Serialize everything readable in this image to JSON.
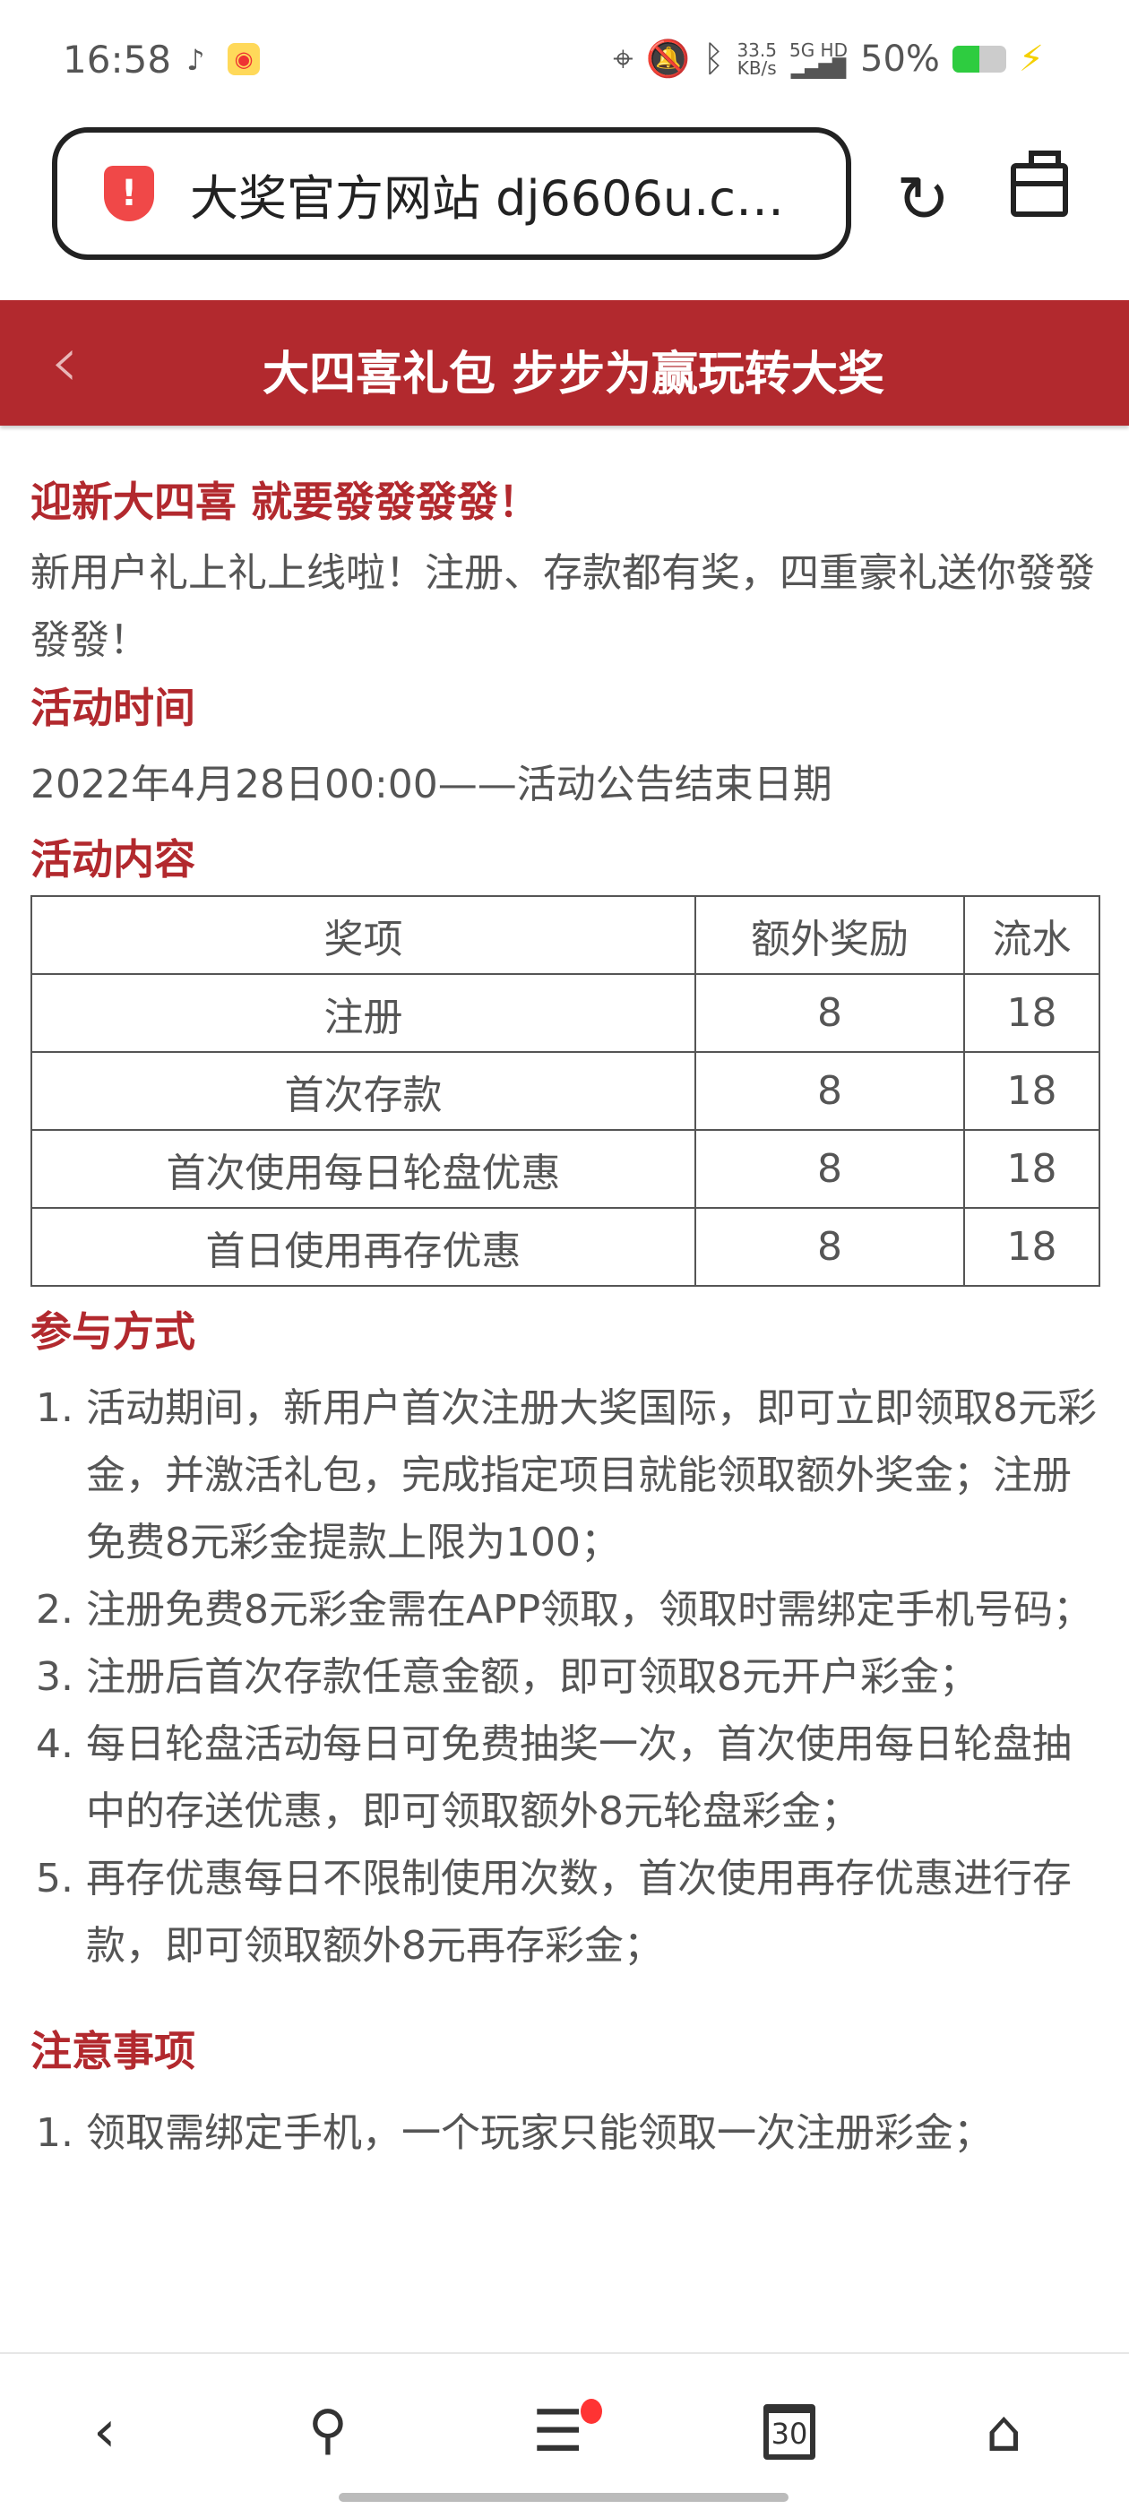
{
  "status": {
    "time": "16:58",
    "speed_top": "33.5",
    "speed_bottom": "KB/s",
    "network": "5G HD",
    "battery": "50%",
    "battery_level": 0.5
  },
  "browser": {
    "url": "大奖官方网站 dj6606u.c…",
    "security": "warning"
  },
  "header": {
    "back": "‹",
    "title": "大四喜礼包 步步为赢玩转大奖"
  },
  "intro": {
    "heading": "迎新大四喜 就要發發發發！",
    "text": "新用户礼上礼上线啦！注册、存款都有奖，四重豪礼送你發發發發！"
  },
  "time": {
    "heading": "活动时间",
    "text": "2022年4月28日00:00——活动公告结束日期"
  },
  "content": {
    "heading": "活动内容",
    "columns": [
      "奖项",
      "额外奖励",
      "流水"
    ],
    "rows": [
      [
        "注册",
        "8",
        "18"
      ],
      [
        "首次存款",
        "8",
        "18"
      ],
      [
        "首次使用每日轮盘优惠",
        "8",
        "18"
      ],
      [
        "首日使用再存优惠",
        "8",
        "18"
      ]
    ]
  },
  "participate": {
    "heading": "参与方式",
    "items": [
      "活动期间，新用户首次注册大奖国际，即可立即领取8元彩金，并激活礼包，完成指定项目就能领取额外奖金；注册免费8元彩金提款上限为100；",
      "注册免费8元彩金需在APP领取，领取时需绑定手机号码；",
      "注册后首次存款任意金额，即可领取8元开户彩金；",
      "每日轮盘活动每日可免费抽奖一次，首次使用每日轮盘抽中的存送优惠，即可领取额外8元轮盘彩金；",
      "再存优惠每日不限制使用次数，首次使用再存优惠进行存款，即可领取额外8元再存彩金；"
    ]
  },
  "notes": {
    "heading": "注意事项",
    "items": [
      "领取需绑定手机，一个玩家只能领取一次注册彩金；"
    ]
  },
  "bottom_nav": {
    "tab_count": "30"
  },
  "colors": {
    "accent": "#b2292e"
  }
}
